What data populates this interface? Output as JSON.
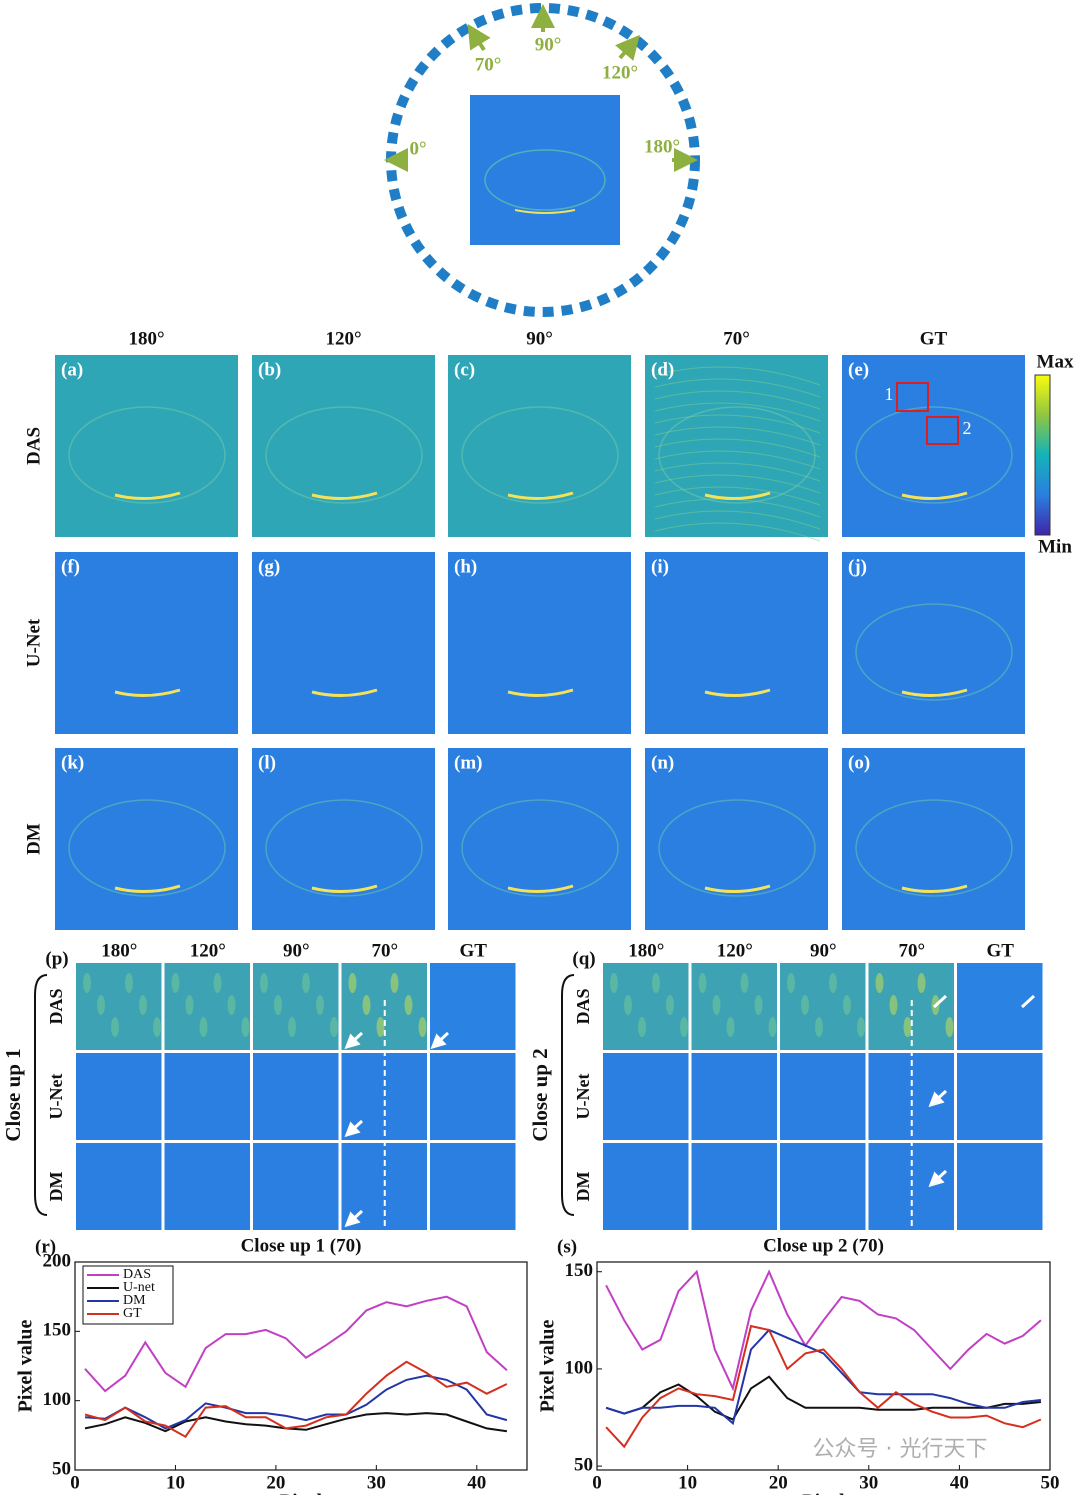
{
  "diagram": {
    "angles": [
      "0°",
      "70°",
      "90°",
      "120°",
      "180°"
    ]
  },
  "panels": {
    "columns": [
      "180°",
      "120°",
      "90°",
      "70°",
      "GT"
    ],
    "rows": [
      "DAS",
      "U-Net",
      "DM"
    ],
    "labels": [
      "(a)",
      "(b)",
      "(c)",
      "(d)",
      "(e)",
      "(f)",
      "(g)",
      "(h)",
      "(i)",
      "(j)",
      "(k)",
      "(l)",
      "(m)",
      "(n)",
      "(o)"
    ],
    "box_labels": [
      "1",
      "2"
    ],
    "colorbar": {
      "max": "Max",
      "min": "Min"
    }
  },
  "closeups": [
    {
      "label": "(p)",
      "title": "Close up 1",
      "columns": [
        "180°",
        "120°",
        "90°",
        "70°",
        "GT"
      ],
      "rows": [
        "DAS",
        "U-Net",
        "DM"
      ]
    },
    {
      "label": "(q)",
      "title": "Close up 2",
      "columns": [
        "180°",
        "120°",
        "90°",
        "70°",
        "GT"
      ],
      "rows": [
        "DAS",
        "U-Net",
        "DM"
      ]
    }
  ],
  "chart_data": [
    {
      "type": "line",
      "label": "(r)",
      "title": "Close up 1 (70)",
      "xlabel": "Pixel",
      "ylabel": "Pixel value",
      "x": [
        1,
        3,
        5,
        7,
        9,
        11,
        13,
        15,
        17,
        19,
        21,
        23,
        25,
        27,
        29,
        31,
        33,
        35,
        37,
        39,
        41,
        43
      ],
      "series": [
        {
          "name": "DAS",
          "color": "#c23fc4",
          "values": [
            123,
            107,
            118,
            142,
            120,
            110,
            138,
            148,
            148,
            151,
            145,
            131,
            140,
            150,
            165,
            171,
            168,
            172,
            175,
            168,
            135,
            122
          ]
        },
        {
          "name": "U-net",
          "color": "#111111",
          "values": [
            80,
            83,
            88,
            84,
            78,
            85,
            88,
            85,
            83,
            82,
            80,
            79,
            83,
            87,
            90,
            91,
            90,
            91,
            90,
            85,
            80,
            78
          ]
        },
        {
          "name": "DM",
          "color": "#2236a8",
          "values": [
            88,
            87,
            95,
            88,
            80,
            86,
            98,
            95,
            91,
            91,
            89,
            86,
            90,
            90,
            97,
            108,
            115,
            118,
            115,
            108,
            90,
            86
          ]
        },
        {
          "name": "GT",
          "color": "#d3301f",
          "values": [
            90,
            86,
            95,
            85,
            82,
            74,
            95,
            96,
            88,
            88,
            80,
            82,
            88,
            90,
            105,
            118,
            128,
            120,
            110,
            113,
            105,
            112
          ]
        }
      ],
      "xlim": [
        0,
        45
      ],
      "ylim": [
        50,
        200
      ],
      "xticks": [
        0,
        10,
        20,
        30,
        40
      ],
      "yticks": [
        50,
        100,
        150,
        200
      ],
      "legend": "upper left"
    },
    {
      "type": "line",
      "label": "(s)",
      "title": "Close up 2 (70)",
      "xlabel": "Pixel",
      "ylabel": "Pixel value",
      "x": [
        1,
        3,
        5,
        7,
        9,
        11,
        13,
        15,
        17,
        19,
        21,
        23,
        25,
        27,
        29,
        31,
        33,
        35,
        37,
        39,
        41,
        43,
        45,
        47,
        49
      ],
      "series": [
        {
          "name": "DAS",
          "color": "#c23fc4",
          "values": [
            143,
            125,
            110,
            115,
            140,
            150,
            110,
            90,
            130,
            150,
            128,
            112,
            125,
            137,
            135,
            128,
            126,
            120,
            110,
            100,
            110,
            118,
            113,
            117,
            125
          ]
        },
        {
          "name": "U-net",
          "color": "#111111",
          "values": [
            80,
            77,
            80,
            88,
            92,
            86,
            78,
            74,
            90,
            96,
            85,
            80,
            80,
            80,
            80,
            79,
            79,
            79,
            80,
            80,
            80,
            80,
            82,
            82,
            83
          ]
        },
        {
          "name": "DM",
          "color": "#2236a8",
          "values": [
            80,
            77,
            80,
            80,
            81,
            81,
            80,
            72,
            110,
            120,
            116,
            112,
            108,
            98,
            88,
            87,
            87,
            87,
            87,
            85,
            82,
            80,
            80,
            83,
            84
          ]
        },
        {
          "name": "GT",
          "color": "#d3301f",
          "values": [
            70,
            60,
            75,
            85,
            90,
            87,
            86,
            84,
            122,
            120,
            100,
            108,
            110,
            100,
            88,
            80,
            88,
            82,
            78,
            75,
            75,
            76,
            72,
            70,
            74
          ]
        }
      ],
      "xlim": [
        0,
        50
      ],
      "ylim": [
        48,
        155
      ],
      "xticks": [
        0,
        10,
        20,
        30,
        40,
        50
      ],
      "yticks": [
        50,
        100,
        150
      ]
    }
  ],
  "watermark": "公众号 · 光行天下"
}
